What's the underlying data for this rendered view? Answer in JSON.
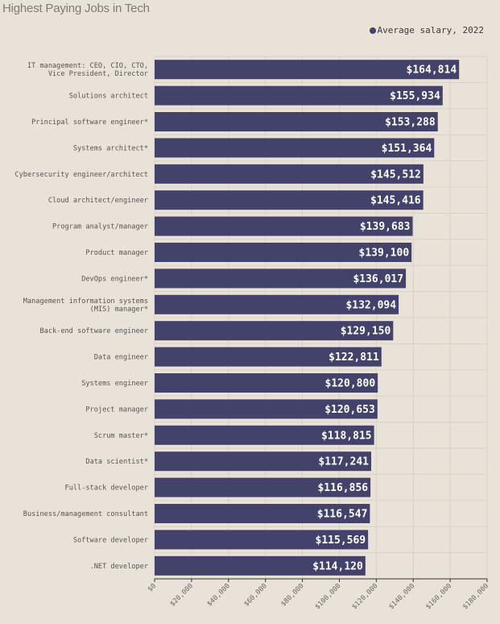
{
  "header": {
    "title": "Highest Paying Jobs in Tech"
  },
  "legend": {
    "label": "Average salary, 2022"
  },
  "colors": {
    "bar": "#43426b",
    "background": "#e9e2d8",
    "grid": "#d8d1c6"
  },
  "chart_data": {
    "type": "bar",
    "orientation": "horizontal",
    "title": "Highest Paying Jobs in Tech",
    "xlabel": "",
    "ylabel": "",
    "xlim": [
      0,
      180000
    ],
    "grid": true,
    "legend_placement": "top-right",
    "categories": [
      [
        "IT management: CEO, CIO, CTO,",
        "Vice President, Director"
      ],
      [
        "Solutions architect"
      ],
      [
        "Principal software engineer*"
      ],
      [
        "Systems architect*"
      ],
      [
        "Cybersecurity engineer/architect"
      ],
      [
        "Cloud architect/engineer"
      ],
      [
        "Program analyst/manager"
      ],
      [
        "Product manager"
      ],
      [
        "DevOps engineer*"
      ],
      [
        "Management information systems",
        "(MIS) manager*"
      ],
      [
        "Back-end software engineer"
      ],
      [
        "Data engineer"
      ],
      [
        "Systems engineer"
      ],
      [
        "Project manager"
      ],
      [
        "Scrum master*"
      ],
      [
        "Data scientist*"
      ],
      [
        "Full-stack developer"
      ],
      [
        "Business/management consultant"
      ],
      [
        "Software developer"
      ],
      [
        ".NET developer"
      ]
    ],
    "series": [
      {
        "name": "Average salary, 2022",
        "values": [
          164814,
          155934,
          153288,
          151364,
          145512,
          145416,
          139683,
          139100,
          136017,
          132094,
          129150,
          122811,
          120800,
          120653,
          118815,
          117241,
          116856,
          116547,
          115569,
          114120
        ]
      }
    ],
    "value_labels": [
      "$164,814",
      "$155,934",
      "$153,288",
      "$151,364",
      "$145,512",
      "$145,416",
      "$139,683",
      "$139,100",
      "$136,017",
      "$132,094",
      "$129,150",
      "$122,811",
      "$120,800",
      "$120,653",
      "$118,815",
      "$117,241",
      "$116,856",
      "$116,547",
      "$115,569",
      "$114,120"
    ],
    "ticks": [
      0,
      20000,
      40000,
      60000,
      80000,
      100000,
      120000,
      140000,
      160000,
      180000
    ],
    "tick_labels": [
      "$0",
      "$20,000",
      "$40,000",
      "$60,000",
      "$80,000",
      "$100,000",
      "$120,000",
      "$140,000",
      "$160,000",
      "$180,000"
    ]
  }
}
